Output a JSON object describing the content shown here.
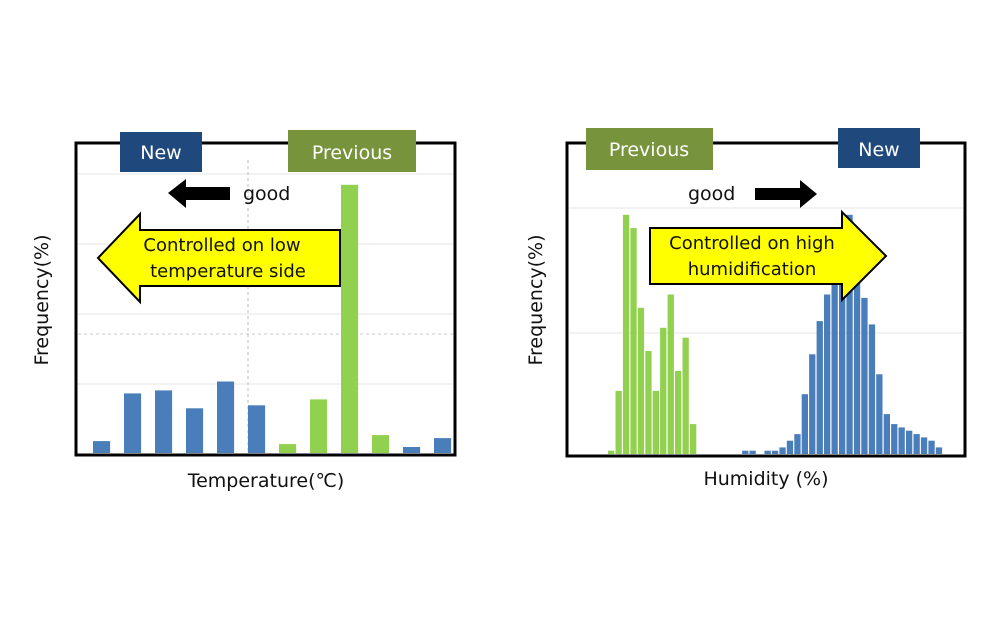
{
  "colors": {
    "new": "#4A7EBB",
    "previous": "#92D050",
    "new_tag": "#1F497D",
    "previous_tag": "#77933C",
    "callout": "#FFFF00"
  },
  "legend": {
    "new": "New",
    "previous": "Previous"
  },
  "good_label": "good",
  "chart_data": [
    {
      "type": "bar",
      "xlabel": "Temperature(℃)",
      "ylabel": "Frequency(%)",
      "callout": [
        "Controlled on low",
        "temperature side"
      ],
      "good_direction": "left",
      "series": [
        {
          "name": "New",
          "values": [
            4,
            20,
            21,
            15,
            24,
            16,
            2,
            0,
            0,
            0,
            2,
            5
          ]
        },
        {
          "name": "Previous",
          "values": [
            0,
            0,
            0,
            0,
            0,
            0,
            3,
            18,
            90,
            6,
            0,
            0
          ]
        }
      ],
      "ylim": [
        0,
        100
      ],
      "grid": true
    },
    {
      "type": "bar",
      "xlabel": "Humidity (%)",
      "ylabel": "Frequency(%)",
      "callout": [
        "Controlled on high",
        "humidification"
      ],
      "good_direction": "right",
      "series": [
        {
          "name": "Previous",
          "values": [
            1,
            19,
            72,
            68,
            44,
            31,
            19,
            38,
            48,
            25,
            35,
            9,
            0,
            0,
            0,
            0,
            0,
            0,
            0,
            0,
            0,
            0,
            0,
            0,
            0,
            0,
            0,
            0,
            0,
            0,
            0,
            0,
            0,
            0,
            0,
            0,
            0,
            0,
            0,
            0,
            0,
            0,
            0,
            0,
            0,
            0,
            0,
            0,
            0,
            0,
            0,
            0,
            0
          ]
        },
        {
          "name": "New",
          "values": [
            0,
            0,
            0,
            0,
            0,
            0,
            0,
            0,
            0,
            0,
            0,
            0,
            0,
            0,
            0,
            0,
            0,
            0,
            1,
            1,
            0,
            1,
            1,
            2,
            4,
            6,
            18,
            30,
            40,
            48,
            59,
            53,
            72,
            60,
            47,
            39,
            24,
            12,
            9,
            8,
            7,
            6,
            5,
            4,
            2,
            0,
            0,
            0,
            0,
            0,
            0,
            0,
            0
          ]
        }
      ],
      "ylim": [
        0,
        90
      ],
      "grid": true
    }
  ]
}
